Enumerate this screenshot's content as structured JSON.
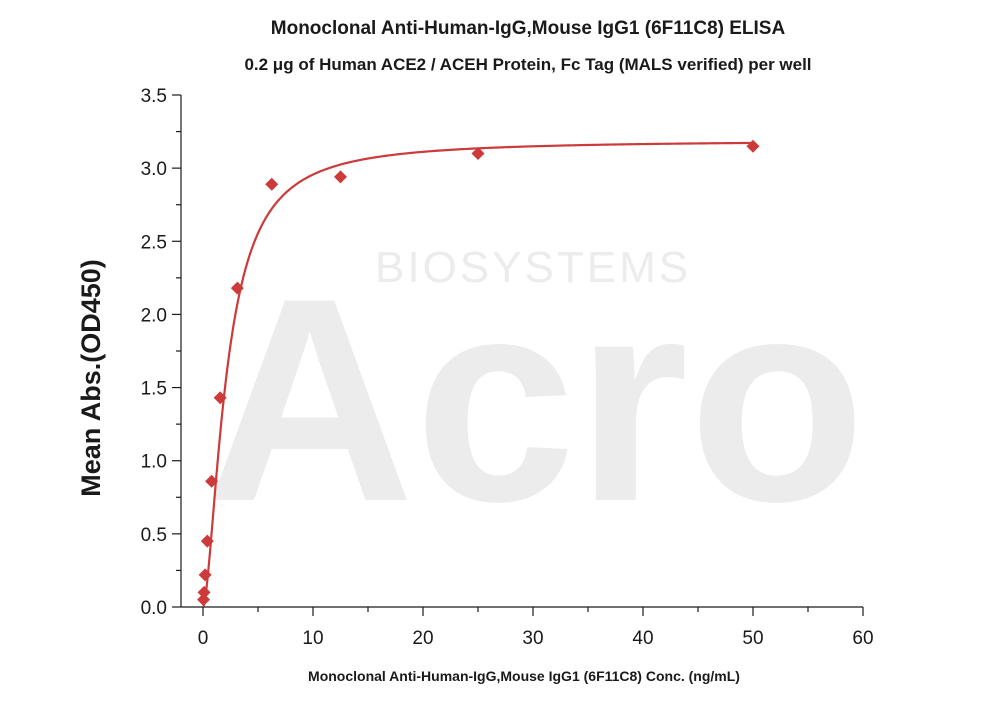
{
  "colors": {
    "series": "#cc3a3a",
    "axis": "#1a1a1a",
    "watermark": "#ececec"
  },
  "watermark": {
    "brand": "Acro",
    "sub": "BIOSYSTEMS"
  },
  "chart_data": {
    "type": "scatter",
    "title": "Monoclonal Anti-Human-IgG,Mouse IgG1 (6F11C8) ELISA",
    "subtitle": "0.2 μg of Human ACE2 / ACEH Protein, Fc Tag (MALS verified) per well",
    "xlabel": "Monoclonal Anti-Human-IgG,Mouse IgG1 (6F11C8) Conc. (ng/mL)",
    "ylabel": "Mean Abs.(OD450)",
    "xlim": [
      -2,
      60
    ],
    "ylim": [
      0,
      3.5
    ],
    "xticks": [
      0,
      10,
      20,
      30,
      40,
      50,
      60
    ],
    "yticks": [
      0.0,
      0.5,
      1.0,
      1.5,
      2.0,
      2.5,
      3.0,
      3.5
    ],
    "ytick_labels": [
      "0.0",
      "0.5",
      "1.0",
      "1.5",
      "2.0",
      "2.5",
      "3.0",
      "3.5"
    ],
    "grid": false,
    "legend": "none",
    "marker": "diamond",
    "fit": "4PL",
    "series": [
      {
        "x": [
          0.0488,
          0.0977,
          0.195,
          0.391,
          0.781,
          1.5625,
          3.125,
          6.25,
          12.5,
          25,
          50
        ],
        "y": [
          0.05,
          0.1,
          0.22,
          0.45,
          0.86,
          1.43,
          2.18,
          2.89,
          2.94,
          3.1,
          3.15
        ]
      }
    ]
  }
}
